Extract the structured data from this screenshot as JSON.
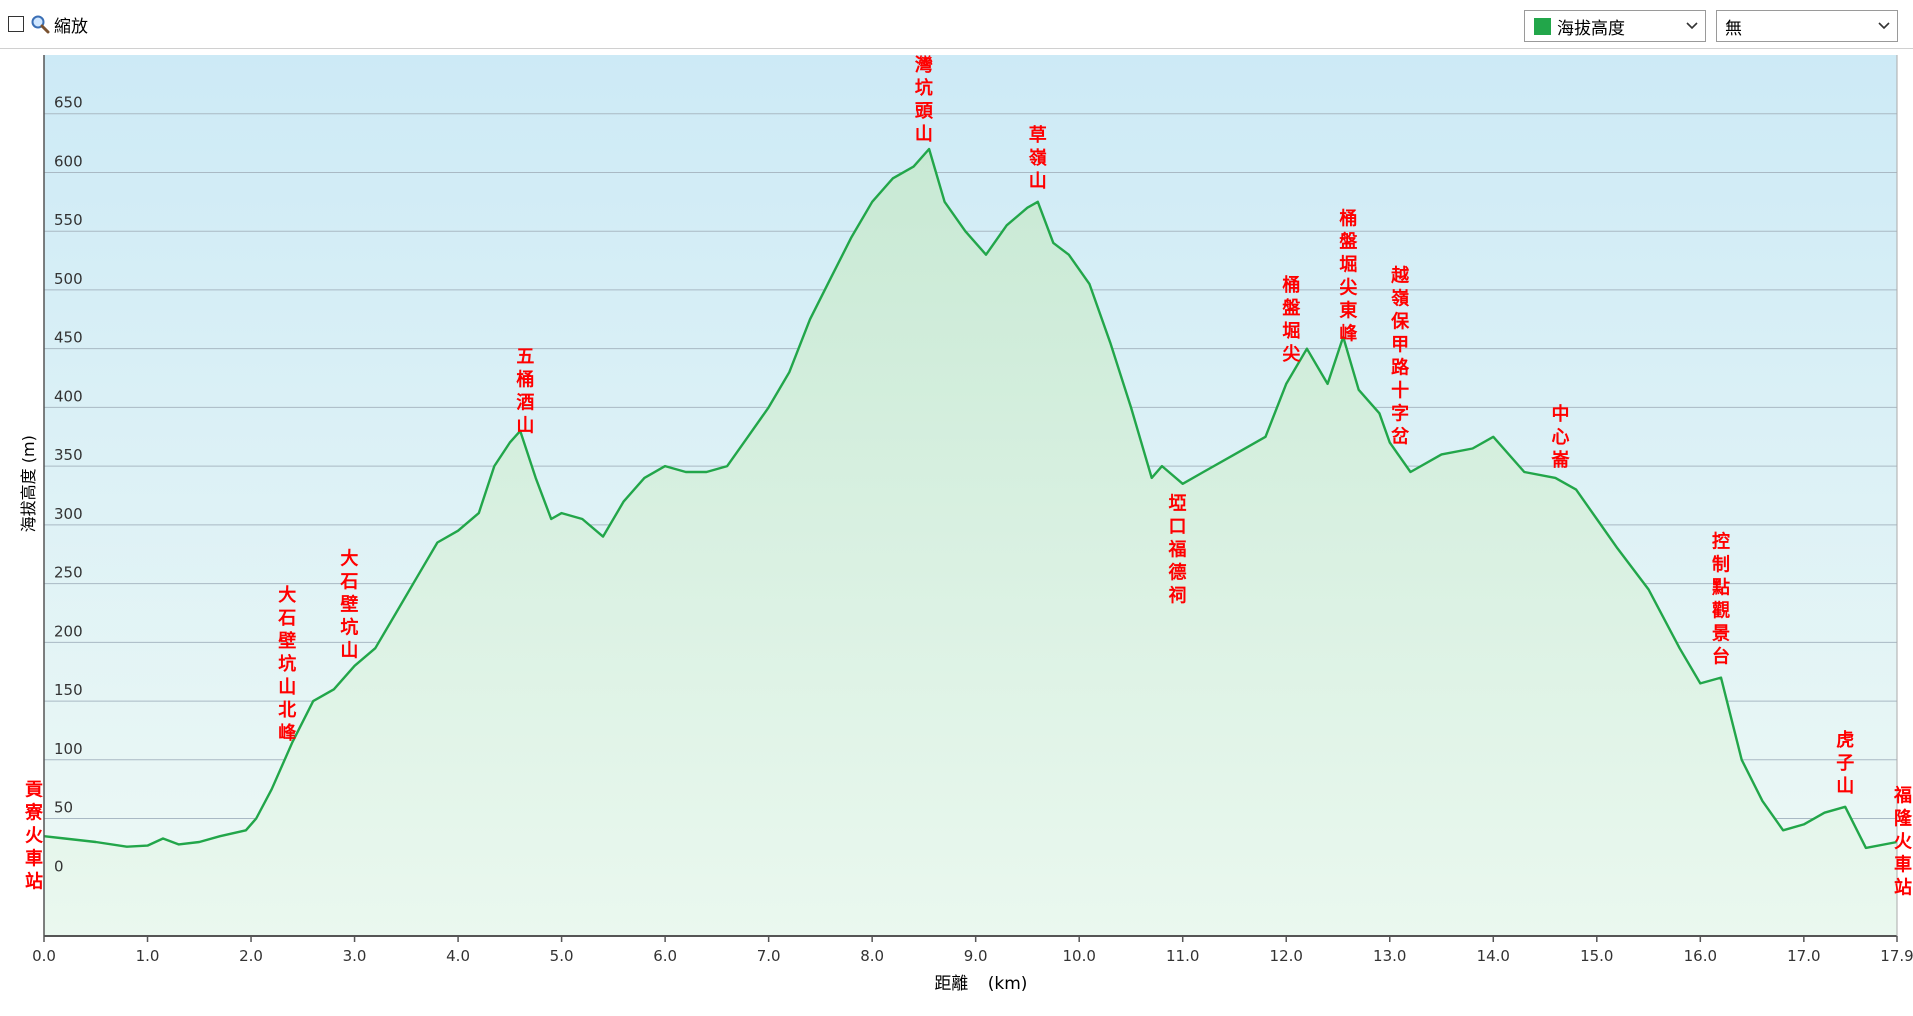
{
  "toolbar": {
    "zoom_label": "縮放",
    "series_select": "海拔高度",
    "series_color": "#22a64a",
    "overlay_select": "無",
    "icons": [
      "checkbox",
      "magnifier-icon",
      "chevron-down-icon"
    ]
  },
  "chart_data": {
    "type": "area",
    "xlabel": "距離",
    "xlabel_unit": "(km)",
    "ylabel": "海拔高度 (m)",
    "xlim": [
      0,
      17.9
    ],
    "ylim": [
      -50,
      700
    ],
    "x_ticks": [
      "0.0",
      "1.0",
      "2.0",
      "3.0",
      "4.0",
      "5.0",
      "6.0",
      "7.0",
      "8.0",
      "9.0",
      "10.0",
      "11.0",
      "12.0",
      "13.0",
      "14.0",
      "15.0",
      "16.0",
      "17.0",
      "17.9"
    ],
    "x_tick_values": [
      0,
      1,
      2,
      3,
      4,
      5,
      6,
      7,
      8,
      9,
      10,
      11,
      12,
      13,
      14,
      15,
      16,
      17,
      17.9
    ],
    "y_ticks": [
      0,
      50,
      100,
      150,
      200,
      250,
      300,
      350,
      400,
      450,
      500,
      550,
      600,
      650
    ],
    "grid": true,
    "line_color": "#22a64a",
    "series": [
      {
        "x": [
          0,
          0.2,
          0.5,
          0.8,
          1.0,
          1.15,
          1.3,
          1.5,
          1.7,
          1.95,
          2.05,
          2.2,
          2.4,
          2.6,
          2.8,
          3.0,
          3.2,
          3.4,
          3.6,
          3.8,
          4.0,
          4.2,
          4.35,
          4.5,
          4.6,
          4.75,
          4.9,
          5.0,
          5.2,
          5.4,
          5.6,
          5.8,
          6.0,
          6.2,
          6.4,
          6.6,
          6.8,
          7.0,
          7.2,
          7.4,
          7.6,
          7.8,
          8.0,
          8.2,
          8.4,
          8.55,
          8.7,
          8.9,
          9.1,
          9.3,
          9.5,
          9.6,
          9.75,
          9.9,
          10.1,
          10.3,
          10.5,
          10.7,
          10.8,
          11.0,
          11.2,
          11.5,
          11.8,
          12.0,
          12.2,
          12.4,
          12.55,
          12.7,
          12.9,
          13.0,
          13.2,
          13.5,
          13.8,
          14.0,
          14.3,
          14.6,
          14.8,
          15.0,
          15.2,
          15.5,
          15.8,
          16.0,
          16.2,
          16.4,
          16.6,
          16.8,
          17.0,
          17.2,
          17.4,
          17.6,
          17.9
        ],
        "y": [
          35,
          33,
          30,
          26,
          27,
          33,
          28,
          30,
          35,
          40,
          50,
          75,
          115,
          150,
          160,
          180,
          195,
          225,
          255,
          285,
          295,
          310,
          350,
          370,
          380,
          340,
          305,
          310,
          305,
          290,
          320,
          340,
          350,
          345,
          345,
          350,
          375,
          400,
          430,
          475,
          510,
          545,
          575,
          595,
          605,
          620,
          575,
          550,
          530,
          555,
          570,
          575,
          540,
          530,
          505,
          455,
          400,
          340,
          350,
          335,
          345,
          360,
          375,
          420,
          450,
          420,
          460,
          415,
          395,
          370,
          345,
          360,
          365,
          375,
          345,
          340,
          330,
          305,
          280,
          245,
          195,
          165,
          170,
          100,
          65,
          40,
          45,
          55,
          60,
          25,
          30
        ]
      }
    ],
    "annotations": [
      {
        "label": "貢寮火車站",
        "x": 0.0
      },
      {
        "label": "大石壁坑山北峰",
        "x": 2.35
      },
      {
        "label": "大石壁坑山",
        "x": 2.95
      },
      {
        "label": "五桶酒山",
        "x": 4.65
      },
      {
        "label": "灣坑頭山",
        "x": 8.5
      },
      {
        "label": "草嶺山",
        "x": 9.6
      },
      {
        "label": "埡口福德祠",
        "x": 10.95
      },
      {
        "label": "桶盤堀尖",
        "x": 12.05
      },
      {
        "label": "桶盤堀尖東峰",
        "x": 12.6
      },
      {
        "label": "越嶺保甲路十字岔",
        "x": 13.1
      },
      {
        "label": "中心崙",
        "x": 14.65
      },
      {
        "label": "控制點觀景台",
        "x": 16.2
      },
      {
        "label": "虎子山",
        "x": 17.4
      },
      {
        "label": "福隆火車站",
        "x": 17.9
      }
    ],
    "annotation_color": "#ff0000"
  }
}
